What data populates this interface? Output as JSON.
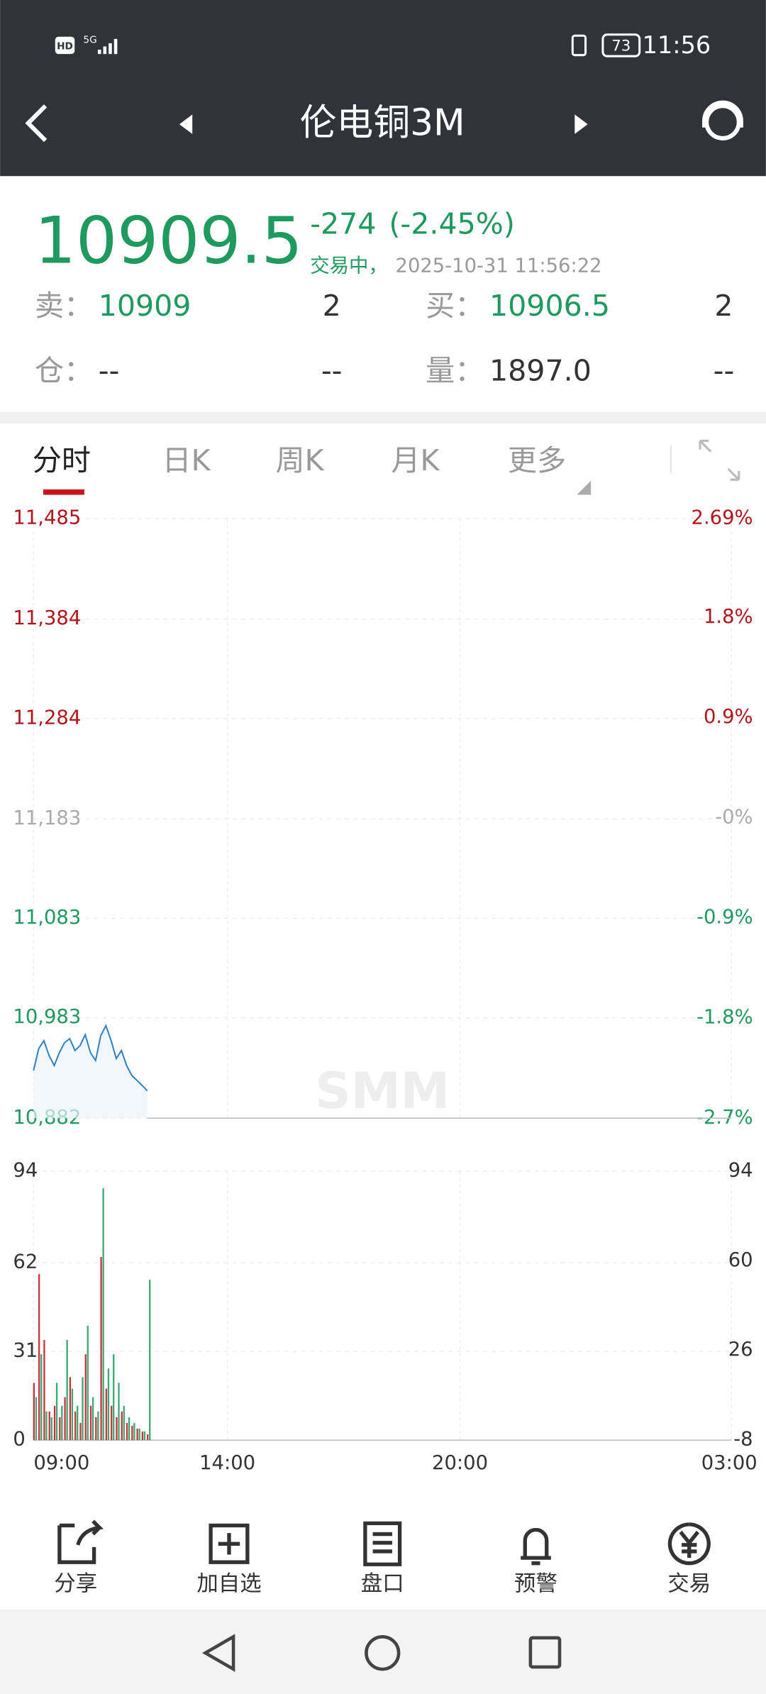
{
  "status_bar": {
    "hd": "HD",
    "network": "5G",
    "battery": "73",
    "time": "11:56"
  },
  "header": {
    "title": "伦电铜3M"
  },
  "quote": {
    "price": "10909.5",
    "change": "-274",
    "change_pct": "(-2.45%)",
    "state": "交易中，",
    "timestamp": "2025-10-31 11:56:22",
    "rows": [
      [
        "卖：",
        "10909",
        "2",
        "买：",
        "10906.5",
        "2"
      ],
      [
        "仓：",
        "--",
        "--",
        "量：",
        "1897.0",
        "--"
      ]
    ]
  },
  "tabs": [
    "分时",
    "日K",
    "周K",
    "月K",
    "更多"
  ],
  "watermark": "SMM",
  "price_chart": {
    "type": "line",
    "color": "#2f7fc1",
    "x": [
      0,
      8,
      16,
      24,
      32,
      40,
      48,
      56,
      64,
      72,
      80,
      88,
      96,
      104,
      112,
      120,
      128,
      136,
      144,
      152,
      160,
      168,
      176
    ],
    "values": [
      10930,
      10952,
      10960,
      10945,
      10935,
      10948,
      10958,
      10962,
      10950,
      10955,
      10966,
      10948,
      10940,
      10965,
      10975,
      10960,
      10942,
      10950,
      10935,
      10925,
      10920,
      10915,
      10909.5
    ],
    "xlim": [
      0,
      1080
    ],
    "xticks": [
      {
        "value": 0,
        "label": "09:00"
      },
      {
        "value": 300,
        "label": "14:00"
      },
      {
        "value": 660,
        "label": "20:00"
      },
      {
        "value": 1080,
        "label": "03:00"
      }
    ],
    "ylim": [
      10882,
      11485
    ],
    "yticks": [
      {
        "value": 11485,
        "label": "11,485"
      },
      {
        "value": 11384,
        "label": "11,384"
      },
      {
        "value": 11284,
        "label": "11,284"
      },
      {
        "value": 11183,
        "label": "11,183"
      },
      {
        "value": 11083,
        "label": "11,083"
      },
      {
        "value": 10983,
        "label": "10,983"
      },
      {
        "value": 10882,
        "label": "10,882"
      }
    ],
    "y2lim": [
      -2.7,
      2.69
    ],
    "y2ticks": [
      {
        "value": 2.69,
        "label": "2.69%"
      },
      {
        "value": 1.8,
        "label": "1.8%"
      },
      {
        "value": 0.9,
        "label": "0.9%"
      },
      {
        "value": 0,
        "label": "-0%"
      },
      {
        "value": -0.9,
        "label": "-0.9%"
      },
      {
        "value": -1.8,
        "label": "-1.8%"
      },
      {
        "value": -2.7,
        "label": "-2.7%"
      }
    ],
    "grid": true
  },
  "volume_chart": {
    "type": "bar",
    "x": [
      0,
      8,
      16,
      24,
      32,
      40,
      48,
      56,
      64,
      72,
      80,
      88,
      96,
      104,
      112,
      120,
      128,
      136,
      144,
      152,
      160,
      168,
      176
    ],
    "series": [
      {
        "color": "#c8333b",
        "values": [
          20,
          58,
          35,
          10,
          12,
          8,
          15,
          22,
          10,
          6,
          30,
          12,
          8,
          64,
          18,
          12,
          8,
          10,
          6,
          5,
          4,
          3,
          2
        ]
      },
      {
        "color": "#3aa872",
        "values": [
          15,
          30,
          10,
          8,
          20,
          12,
          35,
          18,
          12,
          22,
          40,
          15,
          10,
          88,
          25,
          30,
          20,
          12,
          8,
          6,
          4,
          3,
          56
        ]
      }
    ],
    "xlim": [
      0,
      1080
    ],
    "ylim": [
      0,
      94
    ],
    "yticks": [
      0,
      31,
      62,
      94
    ],
    "y2lim": [
      -8,
      94
    ],
    "y2ticks": [
      -8,
      26,
      60,
      94
    ],
    "grid": true
  },
  "bottom_nav": [
    "分享",
    "加自选",
    "盘口",
    "预警",
    "交易"
  ]
}
